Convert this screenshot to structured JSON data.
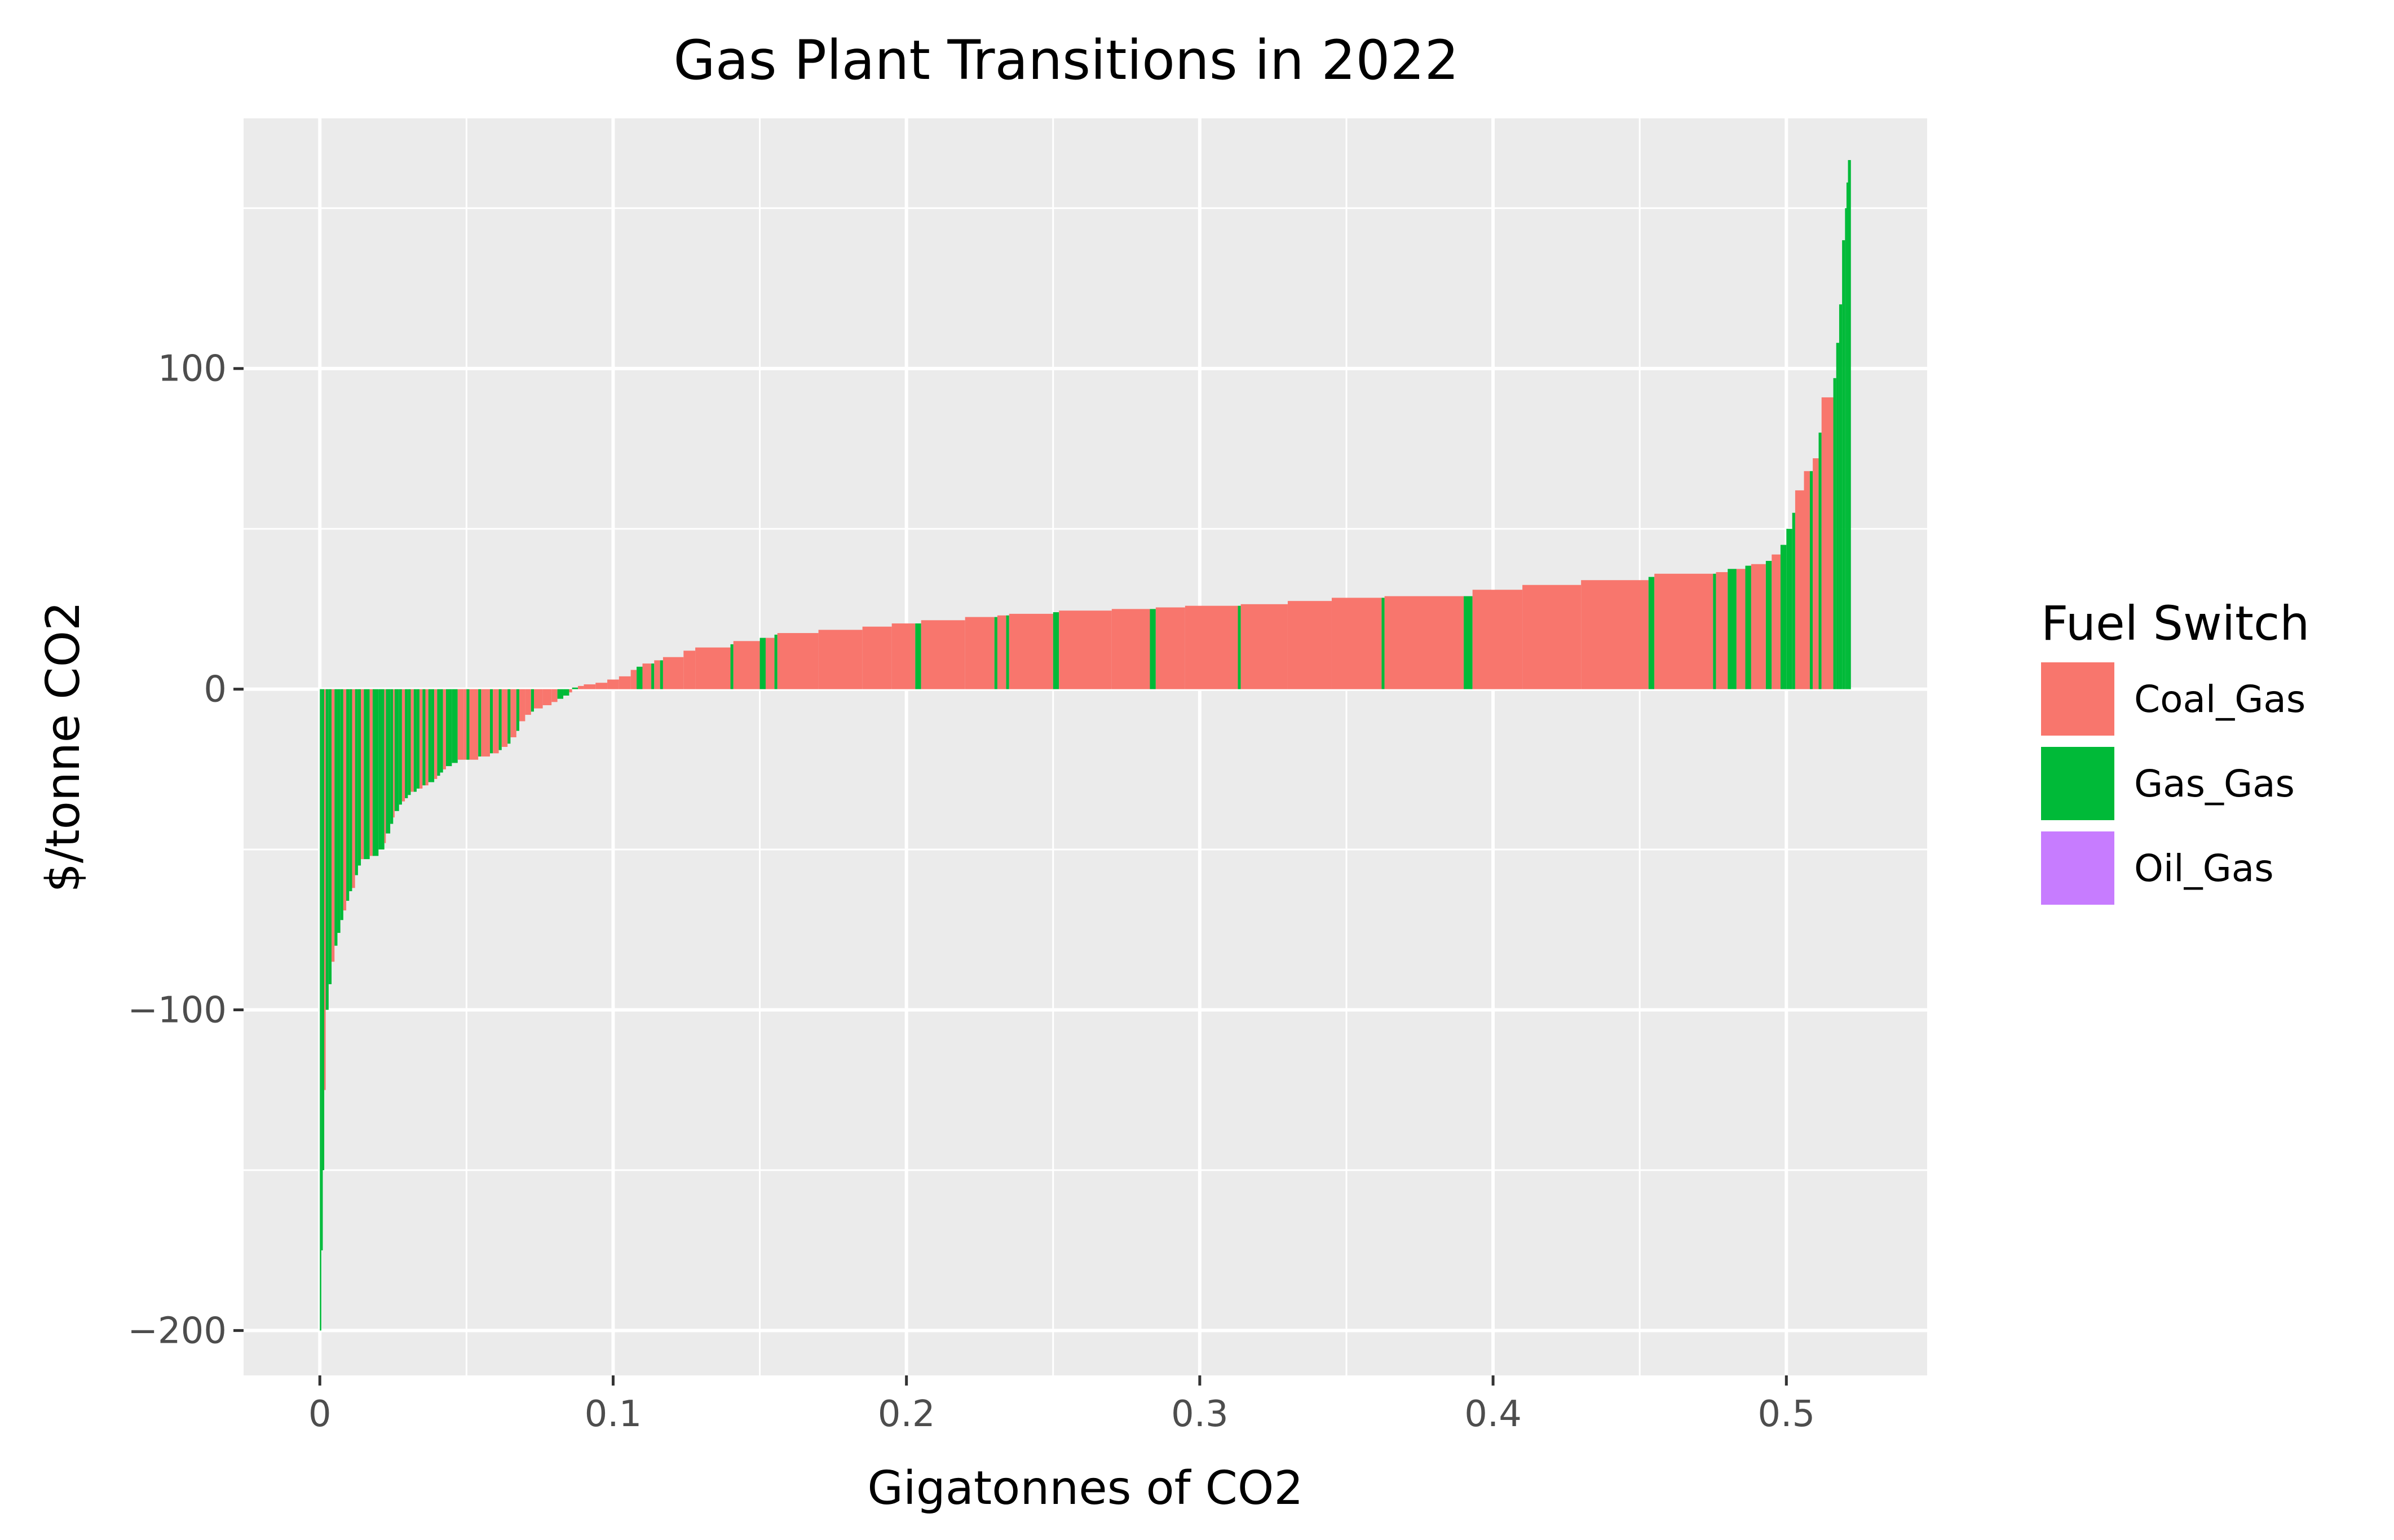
{
  "chart_data": {
    "type": "bar",
    "title": "Gas Plant Transitions in 2022",
    "xlabel": "Gigatonnes of CO2",
    "ylabel": "$/tonne CO2",
    "xlim": [
      -0.026,
      0.548
    ],
    "ylim": [
      -214,
      178
    ],
    "xticks": [
      0,
      0.1,
      0.2,
      0.3,
      0.4,
      0.5
    ],
    "xtick_labels": [
      "0",
      "0.1",
      "0.2",
      "0.3",
      "0.4",
      "0.5"
    ],
    "yticks": [
      -200,
      -100,
      0,
      100
    ],
    "ytick_labels": [
      "−200",
      "−100",
      "0",
      "100"
    ],
    "grid": true,
    "panel_background": "#ebebeb",
    "legend": {
      "title": "Fuel Switch",
      "placement": "right",
      "entries": [
        {
          "name": "Coal_Gas",
          "color": "#F8766D"
        },
        {
          "name": "Gas_Gas",
          "color": "#00BA38"
        },
        {
          "name": "Oil_Gas",
          "color": "#C77CFF"
        }
      ]
    },
    "bars": [
      {
        "x0": 0.0,
        "x1": 0.0005,
        "y": -200,
        "fuel": "Gas_Gas"
      },
      {
        "x0": 0.0005,
        "x1": 0.001,
        "y": -175,
        "fuel": "Gas_Gas"
      },
      {
        "x0": 0.001,
        "x1": 0.0015,
        "y": -150,
        "fuel": "Gas_Gas"
      },
      {
        "x0": 0.0015,
        "x1": 0.002,
        "y": -125,
        "fuel": "Coal_Gas"
      },
      {
        "x0": 0.002,
        "x1": 0.003,
        "y": -100,
        "fuel": "Gas_Gas"
      },
      {
        "x0": 0.003,
        "x1": 0.004,
        "y": -92,
        "fuel": "Gas_Gas"
      },
      {
        "x0": 0.004,
        "x1": 0.005,
        "y": -85,
        "fuel": "Coal_Gas"
      },
      {
        "x0": 0.005,
        "x1": 0.006,
        "y": -80,
        "fuel": "Gas_Gas"
      },
      {
        "x0": 0.006,
        "x1": 0.007,
        "y": -76,
        "fuel": "Gas_Gas"
      },
      {
        "x0": 0.007,
        "x1": 0.008,
        "y": -72,
        "fuel": "Gas_Gas"
      },
      {
        "x0": 0.008,
        "x1": 0.009,
        "y": -69,
        "fuel": "Coal_Gas"
      },
      {
        "x0": 0.009,
        "x1": 0.01,
        "y": -66,
        "fuel": "Gas_Gas"
      },
      {
        "x0": 0.01,
        "x1": 0.011,
        "y": -63,
        "fuel": "Gas_Gas"
      },
      {
        "x0": 0.011,
        "x1": 0.012,
        "y": -62,
        "fuel": "Coal_Gas"
      },
      {
        "x0": 0.012,
        "x1": 0.013,
        "y": -58,
        "fuel": "Gas_Gas"
      },
      {
        "x0": 0.013,
        "x1": 0.014,
        "y": -55,
        "fuel": "Gas_Gas"
      },
      {
        "x0": 0.014,
        "x1": 0.015,
        "y": -53,
        "fuel": "Coal_Gas"
      },
      {
        "x0": 0.015,
        "x1": 0.017,
        "y": -53,
        "fuel": "Gas_Gas"
      },
      {
        "x0": 0.017,
        "x1": 0.018,
        "y": -52,
        "fuel": "Coal_Gas"
      },
      {
        "x0": 0.018,
        "x1": 0.02,
        "y": -52,
        "fuel": "Gas_Gas"
      },
      {
        "x0": 0.02,
        "x1": 0.022,
        "y": -50,
        "fuel": "Gas_Gas"
      },
      {
        "x0": 0.022,
        "x1": 0.0225,
        "y": -48,
        "fuel": "Coal_Gas"
      },
      {
        "x0": 0.0225,
        "x1": 0.024,
        "y": -45,
        "fuel": "Gas_Gas"
      },
      {
        "x0": 0.024,
        "x1": 0.025,
        "y": -42,
        "fuel": "Gas_Gas"
      },
      {
        "x0": 0.025,
        "x1": 0.0255,
        "y": -40,
        "fuel": "Coal_Gas"
      },
      {
        "x0": 0.0255,
        "x1": 0.027,
        "y": -38,
        "fuel": "Gas_Gas"
      },
      {
        "x0": 0.027,
        "x1": 0.028,
        "y": -36,
        "fuel": "Gas_Gas"
      },
      {
        "x0": 0.028,
        "x1": 0.029,
        "y": -35,
        "fuel": "Coal_Gas"
      },
      {
        "x0": 0.029,
        "x1": 0.03,
        "y": -34,
        "fuel": "Gas_Gas"
      },
      {
        "x0": 0.03,
        "x1": 0.031,
        "y": -33,
        "fuel": "Gas_Gas"
      },
      {
        "x0": 0.031,
        "x1": 0.032,
        "y": -32,
        "fuel": "Coal_Gas"
      },
      {
        "x0": 0.032,
        "x1": 0.033,
        "y": -32,
        "fuel": "Gas_Gas"
      },
      {
        "x0": 0.033,
        "x1": 0.034,
        "y": -31,
        "fuel": "Gas_Gas"
      },
      {
        "x0": 0.034,
        "x1": 0.035,
        "y": -31,
        "fuel": "Coal_Gas"
      },
      {
        "x0": 0.035,
        "x1": 0.036,
        "y": -30,
        "fuel": "Gas_Gas"
      },
      {
        "x0": 0.036,
        "x1": 0.037,
        "y": -30,
        "fuel": "Coal_Gas"
      },
      {
        "x0": 0.037,
        "x1": 0.038,
        "y": -29,
        "fuel": "Gas_Gas"
      },
      {
        "x0": 0.038,
        "x1": 0.039,
        "y": -29,
        "fuel": "Gas_Gas"
      },
      {
        "x0": 0.039,
        "x1": 0.04,
        "y": -28,
        "fuel": "Coal_Gas"
      },
      {
        "x0": 0.04,
        "x1": 0.041,
        "y": -27,
        "fuel": "Gas_Gas"
      },
      {
        "x0": 0.041,
        "x1": 0.042,
        "y": -26,
        "fuel": "Gas_Gas"
      },
      {
        "x0": 0.042,
        "x1": 0.043,
        "y": -25,
        "fuel": "Coal_Gas"
      },
      {
        "x0": 0.043,
        "x1": 0.045,
        "y": -24,
        "fuel": "Gas_Gas"
      },
      {
        "x0": 0.045,
        "x1": 0.047,
        "y": -23,
        "fuel": "Gas_Gas"
      },
      {
        "x0": 0.047,
        "x1": 0.049,
        "y": -22,
        "fuel": "Coal_Gas"
      },
      {
        "x0": 0.049,
        "x1": 0.05,
        "y": -22,
        "fuel": "Coal_Gas"
      },
      {
        "x0": 0.05,
        "x1": 0.051,
        "y": -22,
        "fuel": "Gas_Gas"
      },
      {
        "x0": 0.051,
        "x1": 0.054,
        "y": -22,
        "fuel": "Coal_Gas"
      },
      {
        "x0": 0.054,
        "x1": 0.055,
        "y": -21,
        "fuel": "Gas_Gas"
      },
      {
        "x0": 0.055,
        "x1": 0.058,
        "y": -21,
        "fuel": "Coal_Gas"
      },
      {
        "x0": 0.058,
        "x1": 0.059,
        "y": -20,
        "fuel": "Gas_Gas"
      },
      {
        "x0": 0.059,
        "x1": 0.061,
        "y": -20,
        "fuel": "Coal_Gas"
      },
      {
        "x0": 0.061,
        "x1": 0.062,
        "y": -19,
        "fuel": "Gas_Gas"
      },
      {
        "x0": 0.062,
        "x1": 0.064,
        "y": -18,
        "fuel": "Coal_Gas"
      },
      {
        "x0": 0.064,
        "x1": 0.065,
        "y": -17,
        "fuel": "Gas_Gas"
      },
      {
        "x0": 0.065,
        "x1": 0.067,
        "y": -15,
        "fuel": "Coal_Gas"
      },
      {
        "x0": 0.067,
        "x1": 0.068,
        "y": -13,
        "fuel": "Gas_Gas"
      },
      {
        "x0": 0.068,
        "x1": 0.07,
        "y": -10,
        "fuel": "Coal_Gas"
      },
      {
        "x0": 0.07,
        "x1": 0.072,
        "y": -8,
        "fuel": "Coal_Gas"
      },
      {
        "x0": 0.072,
        "x1": 0.073,
        "y": -7,
        "fuel": "Gas_Gas"
      },
      {
        "x0": 0.073,
        "x1": 0.076,
        "y": -6,
        "fuel": "Coal_Gas"
      },
      {
        "x0": 0.076,
        "x1": 0.079,
        "y": -5,
        "fuel": "Coal_Gas"
      },
      {
        "x0": 0.079,
        "x1": 0.081,
        "y": -4,
        "fuel": "Coal_Gas"
      },
      {
        "x0": 0.081,
        "x1": 0.083,
        "y": -3,
        "fuel": "Gas_Gas"
      },
      {
        "x0": 0.083,
        "x1": 0.085,
        "y": -2,
        "fuel": "Gas_Gas"
      },
      {
        "x0": 0.085,
        "x1": 0.086,
        "y": -1,
        "fuel": "Coal_Gas"
      },
      {
        "x0": 0.086,
        "x1": 0.088,
        "y": 0.5,
        "fuel": "Gas_Gas"
      },
      {
        "x0": 0.088,
        "x1": 0.09,
        "y": 1,
        "fuel": "Coal_Gas"
      },
      {
        "x0": 0.09,
        "x1": 0.094,
        "y": 1.5,
        "fuel": "Coal_Gas"
      },
      {
        "x0": 0.094,
        "x1": 0.098,
        "y": 2,
        "fuel": "Coal_Gas"
      },
      {
        "x0": 0.098,
        "x1": 0.102,
        "y": 3,
        "fuel": "Coal_Gas"
      },
      {
        "x0": 0.102,
        "x1": 0.106,
        "y": 4,
        "fuel": "Coal_Gas"
      },
      {
        "x0": 0.106,
        "x1": 0.108,
        "y": 6,
        "fuel": "Coal_Gas"
      },
      {
        "x0": 0.108,
        "x1": 0.11,
        "y": 7,
        "fuel": "Gas_Gas"
      },
      {
        "x0": 0.11,
        "x1": 0.113,
        "y": 8,
        "fuel": "Coal_Gas"
      },
      {
        "x0": 0.113,
        "x1": 0.114,
        "y": 8,
        "fuel": "Gas_Gas"
      },
      {
        "x0": 0.114,
        "x1": 0.116,
        "y": 9,
        "fuel": "Coal_Gas"
      },
      {
        "x0": 0.116,
        "x1": 0.117,
        "y": 9,
        "fuel": "Gas_Gas"
      },
      {
        "x0": 0.117,
        "x1": 0.124,
        "y": 10,
        "fuel": "Coal_Gas"
      },
      {
        "x0": 0.124,
        "x1": 0.128,
        "y": 12,
        "fuel": "Coal_Gas"
      },
      {
        "x0": 0.128,
        "x1": 0.14,
        "y": 13,
        "fuel": "Coal_Gas"
      },
      {
        "x0": 0.14,
        "x1": 0.141,
        "y": 14,
        "fuel": "Gas_Gas"
      },
      {
        "x0": 0.141,
        "x1": 0.15,
        "y": 15,
        "fuel": "Coal_Gas"
      },
      {
        "x0": 0.15,
        "x1": 0.152,
        "y": 16,
        "fuel": "Gas_Gas"
      },
      {
        "x0": 0.152,
        "x1": 0.155,
        "y": 16,
        "fuel": "Coal_Gas"
      },
      {
        "x0": 0.155,
        "x1": 0.156,
        "y": 17,
        "fuel": "Gas_Gas"
      },
      {
        "x0": 0.156,
        "x1": 0.17,
        "y": 17.5,
        "fuel": "Coal_Gas"
      },
      {
        "x0": 0.17,
        "x1": 0.185,
        "y": 18.5,
        "fuel": "Coal_Gas"
      },
      {
        "x0": 0.185,
        "x1": 0.195,
        "y": 19.5,
        "fuel": "Coal_Gas"
      },
      {
        "x0": 0.195,
        "x1": 0.203,
        "y": 20.5,
        "fuel": "Coal_Gas"
      },
      {
        "x0": 0.203,
        "x1": 0.205,
        "y": 20.5,
        "fuel": "Gas_Gas"
      },
      {
        "x0": 0.205,
        "x1": 0.22,
        "y": 21.5,
        "fuel": "Coal_Gas"
      },
      {
        "x0": 0.22,
        "x1": 0.23,
        "y": 22.5,
        "fuel": "Coal_Gas"
      },
      {
        "x0": 0.23,
        "x1": 0.231,
        "y": 22.5,
        "fuel": "Gas_Gas"
      },
      {
        "x0": 0.231,
        "x1": 0.234,
        "y": 23,
        "fuel": "Coal_Gas"
      },
      {
        "x0": 0.234,
        "x1": 0.235,
        "y": 23,
        "fuel": "Gas_Gas"
      },
      {
        "x0": 0.235,
        "x1": 0.25,
        "y": 23.5,
        "fuel": "Coal_Gas"
      },
      {
        "x0": 0.25,
        "x1": 0.252,
        "y": 24,
        "fuel": "Gas_Gas"
      },
      {
        "x0": 0.252,
        "x1": 0.27,
        "y": 24.5,
        "fuel": "Coal_Gas"
      },
      {
        "x0": 0.27,
        "x1": 0.283,
        "y": 25,
        "fuel": "Coal_Gas"
      },
      {
        "x0": 0.283,
        "x1": 0.285,
        "y": 25,
        "fuel": "Gas_Gas"
      },
      {
        "x0": 0.285,
        "x1": 0.295,
        "y": 25.5,
        "fuel": "Coal_Gas"
      },
      {
        "x0": 0.295,
        "x1": 0.313,
        "y": 26,
        "fuel": "Coal_Gas"
      },
      {
        "x0": 0.313,
        "x1": 0.314,
        "y": 26,
        "fuel": "Gas_Gas"
      },
      {
        "x0": 0.314,
        "x1": 0.33,
        "y": 26.5,
        "fuel": "Coal_Gas"
      },
      {
        "x0": 0.33,
        "x1": 0.345,
        "y": 27.5,
        "fuel": "Coal_Gas"
      },
      {
        "x0": 0.345,
        "x1": 0.362,
        "y": 28.5,
        "fuel": "Coal_Gas"
      },
      {
        "x0": 0.362,
        "x1": 0.363,
        "y": 28.5,
        "fuel": "Gas_Gas"
      },
      {
        "x0": 0.363,
        "x1": 0.39,
        "y": 29,
        "fuel": "Coal_Gas"
      },
      {
        "x0": 0.39,
        "x1": 0.393,
        "y": 29,
        "fuel": "Gas_Gas"
      },
      {
        "x0": 0.393,
        "x1": 0.41,
        "y": 31,
        "fuel": "Coal_Gas"
      },
      {
        "x0": 0.41,
        "x1": 0.43,
        "y": 32.5,
        "fuel": "Coal_Gas"
      },
      {
        "x0": 0.43,
        "x1": 0.453,
        "y": 34,
        "fuel": "Coal_Gas"
      },
      {
        "x0": 0.453,
        "x1": 0.455,
        "y": 35,
        "fuel": "Gas_Gas"
      },
      {
        "x0": 0.455,
        "x1": 0.475,
        "y": 36,
        "fuel": "Coal_Gas"
      },
      {
        "x0": 0.475,
        "x1": 0.476,
        "y": 36,
        "fuel": "Gas_Gas"
      },
      {
        "x0": 0.476,
        "x1": 0.48,
        "y": 36.5,
        "fuel": "Coal_Gas"
      },
      {
        "x0": 0.48,
        "x1": 0.483,
        "y": 37.5,
        "fuel": "Gas_Gas"
      },
      {
        "x0": 0.483,
        "x1": 0.486,
        "y": 37.5,
        "fuel": "Coal_Gas"
      },
      {
        "x0": 0.486,
        "x1": 0.488,
        "y": 38.5,
        "fuel": "Gas_Gas"
      },
      {
        "x0": 0.488,
        "x1": 0.493,
        "y": 39,
        "fuel": "Coal_Gas"
      },
      {
        "x0": 0.493,
        "x1": 0.495,
        "y": 40,
        "fuel": "Gas_Gas"
      },
      {
        "x0": 0.495,
        "x1": 0.498,
        "y": 42,
        "fuel": "Coal_Gas"
      },
      {
        "x0": 0.498,
        "x1": 0.5,
        "y": 45,
        "fuel": "Gas_Gas"
      },
      {
        "x0": 0.5,
        "x1": 0.502,
        "y": 50,
        "fuel": "Gas_Gas"
      },
      {
        "x0": 0.502,
        "x1": 0.503,
        "y": 55,
        "fuel": "Gas_Gas"
      },
      {
        "x0": 0.503,
        "x1": 0.506,
        "y": 62,
        "fuel": "Coal_Gas"
      },
      {
        "x0": 0.506,
        "x1": 0.508,
        "y": 68,
        "fuel": "Coal_Gas"
      },
      {
        "x0": 0.508,
        "x1": 0.509,
        "y": 68,
        "fuel": "Gas_Gas"
      },
      {
        "x0": 0.509,
        "x1": 0.511,
        "y": 72,
        "fuel": "Coal_Gas"
      },
      {
        "x0": 0.511,
        "x1": 0.512,
        "y": 80,
        "fuel": "Gas_Gas"
      },
      {
        "x0": 0.512,
        "x1": 0.516,
        "y": 91,
        "fuel": "Coal_Gas"
      },
      {
        "x0": 0.516,
        "x1": 0.517,
        "y": 97,
        "fuel": "Gas_Gas"
      },
      {
        "x0": 0.517,
        "x1": 0.518,
        "y": 108,
        "fuel": "Gas_Gas"
      },
      {
        "x0": 0.518,
        "x1": 0.519,
        "y": 120,
        "fuel": "Gas_Gas"
      },
      {
        "x0": 0.519,
        "x1": 0.52,
        "y": 140,
        "fuel": "Gas_Gas"
      },
      {
        "x0": 0.52,
        "x1": 0.5205,
        "y": 150,
        "fuel": "Gas_Gas"
      },
      {
        "x0": 0.5205,
        "x1": 0.521,
        "y": 158,
        "fuel": "Gas_Gas"
      },
      {
        "x0": 0.521,
        "x1": 0.522,
        "y": 165,
        "fuel": "Gas_Gas"
      }
    ]
  }
}
